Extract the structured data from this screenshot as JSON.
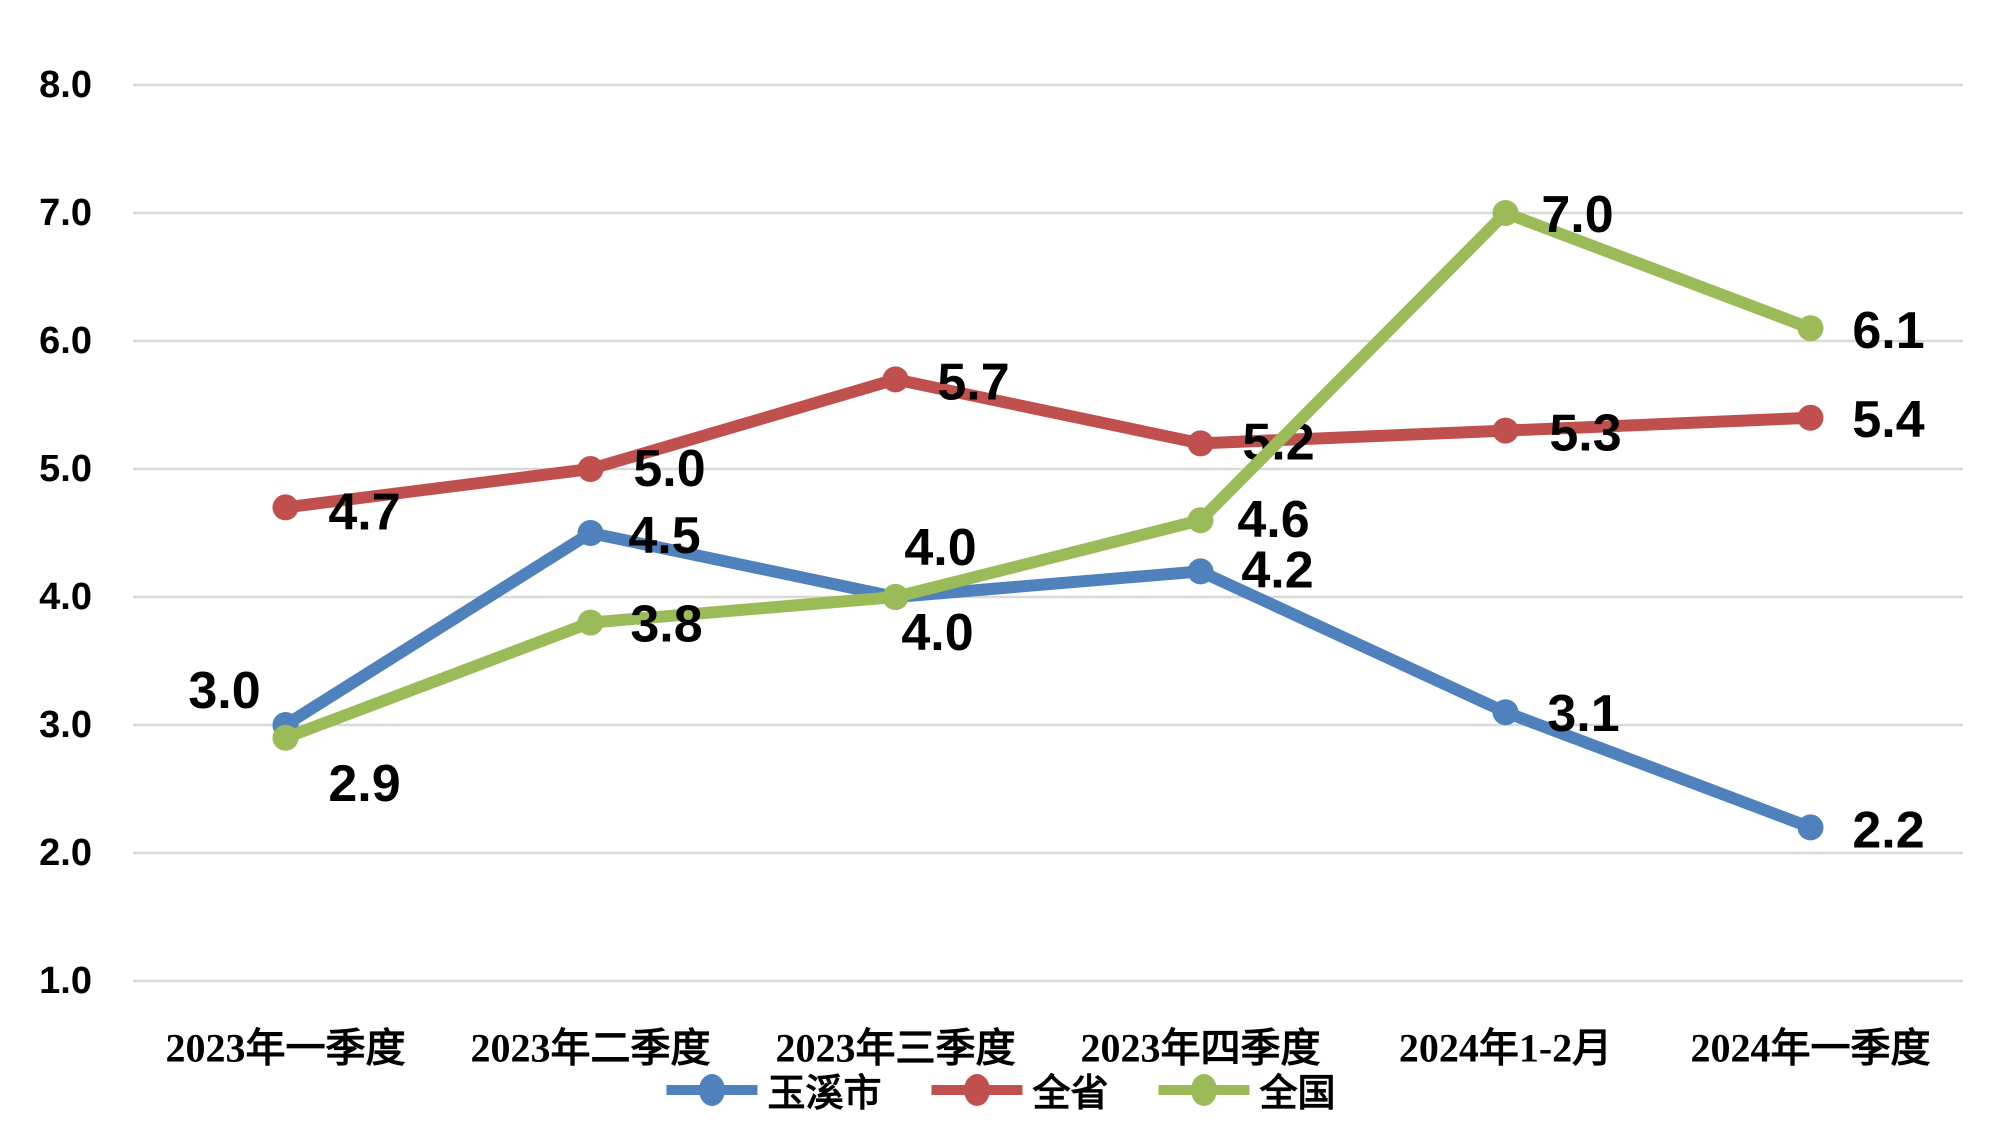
{
  "chart_data": {
    "type": "line",
    "categories": [
      "2023年一季度",
      "2023年二季度",
      "2023年三季度",
      "2023年四季度",
      "2024年1-2月",
      "2024年一季度"
    ],
    "series": [
      {
        "name": "玉溪市",
        "color": "#4F81BD",
        "values": [
          3.0,
          4.5,
          4.0,
          4.2,
          3.1,
          2.2
        ],
        "label_offsets": [
          [
            -61,
            -34
          ],
          [
            74,
            3
          ],
          [
            45,
            -49
          ],
          [
            77,
            -1
          ],
          [
            78,
            2
          ],
          [
            78,
            3
          ]
        ]
      },
      {
        "name": "全省",
        "color": "#C0504D",
        "values": [
          4.7,
          5.0,
          5.7,
          5.2,
          5.3,
          5.4
        ],
        "label_offsets": [
          [
            79,
            5
          ],
          [
            79,
            0
          ],
          [
            78,
            3
          ],
          [
            78,
            -1
          ],
          [
            80,
            3
          ],
          [
            78,
            2
          ]
        ]
      },
      {
        "name": "全国",
        "color": "#9BBB59",
        "values": [
          2.9,
          3.8,
          4.0,
          4.6,
          7.0,
          6.1
        ],
        "label_offsets": [
          [
            79,
            46
          ],
          [
            76,
            2
          ],
          [
            42,
            36
          ],
          [
            73,
            0
          ],
          [
            72,
            2
          ],
          [
            78,
            3
          ]
        ]
      }
    ],
    "y_axis": {
      "min": 1.0,
      "max": 8.0,
      "step": 1.0,
      "tick_labels": [
        "1.0",
        "2.0",
        "3.0",
        "4.0",
        "5.0",
        "6.0",
        "7.0",
        "8.0"
      ]
    },
    "title": "",
    "xlabel": "",
    "ylabel": "",
    "grid": true,
    "legend_position": "bottom",
    "value_decimals": 1
  },
  "colors": {
    "background": "#FFFFFF",
    "gridline": "#D9D9D9",
    "label_text": "#000000",
    "series_blue": "#4F81BD",
    "series_red": "#C0504D",
    "series_green": "#9BBB59"
  }
}
